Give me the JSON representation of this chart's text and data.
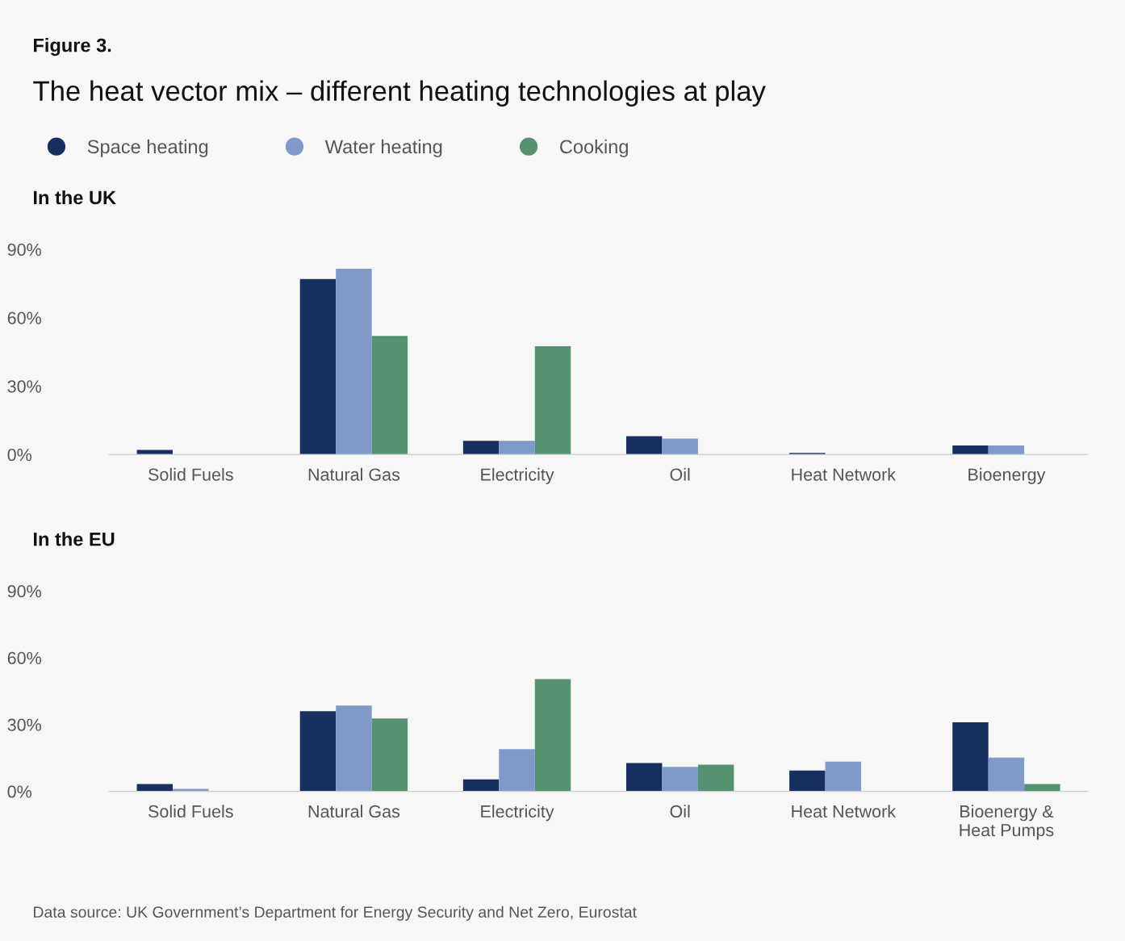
{
  "chart_data": [
    {
      "type": "bar",
      "title": "In the UK",
      "annotations": [
        "Figure 3.",
        "The heat vector mix – different heating technologies at play"
      ],
      "categories": [
        "Solid Fuels",
        "Natural Gas",
        "Electricity",
        "Oil",
        "Heat Network",
        "Bioenergy"
      ],
      "series": [
        {
          "name": "Space heating",
          "color": "#17305f",
          "values": [
            2,
            77,
            6,
            8,
            0.7,
            4
          ]
        },
        {
          "name": "Water heating",
          "color": "#7f99c8",
          "values": [
            null,
            81.5,
            6,
            7,
            null,
            4
          ]
        },
        {
          "name": "Cooking",
          "color": "#55926f",
          "values": [
            null,
            52,
            47.5,
            null,
            null,
            null
          ]
        }
      ],
      "ylim": [
        0,
        90
      ],
      "yticks": [
        {
          "value": 0,
          "label": "0%"
        },
        {
          "value": 30,
          "label": "30%"
        },
        {
          "value": 60,
          "label": "60%"
        },
        {
          "value": 90,
          "label": "90%"
        }
      ],
      "grid": false,
      "legend": "top left"
    },
    {
      "type": "bar",
      "title": "In the EU",
      "annotations": [
        "Data source: UK Government’s Department for Energy Security and Net Zero, Eurostat"
      ],
      "categories": [
        "Solid Fuels",
        "Natural Gas",
        "Electricity",
        "Oil",
        "Heat Network",
        "Bioenergy &\nHeat Pumps"
      ],
      "series": [
        {
          "color": "#17305f",
          "values": [
            3.3,
            36,
            5.4,
            12.7,
            9.4,
            31
          ]
        },
        {
          "color": "#7f99c8",
          "values": [
            1.1,
            38.5,
            19,
            11,
            13.4,
            15.2
          ]
        },
        {
          "color": "#55926f",
          "values": [
            null,
            32.7,
            50.4,
            12,
            null,
            3.3
          ]
        }
      ],
      "ylim": [
        0,
        90
      ],
      "yticks": [
        {
          "value": 0,
          "label": "0%"
        },
        {
          "value": 30,
          "label": "30%"
        },
        {
          "value": 60,
          "label": "60%"
        },
        {
          "value": 90,
          "label": "90%"
        }
      ],
      "grid": false,
      "legend": false
    }
  ]
}
